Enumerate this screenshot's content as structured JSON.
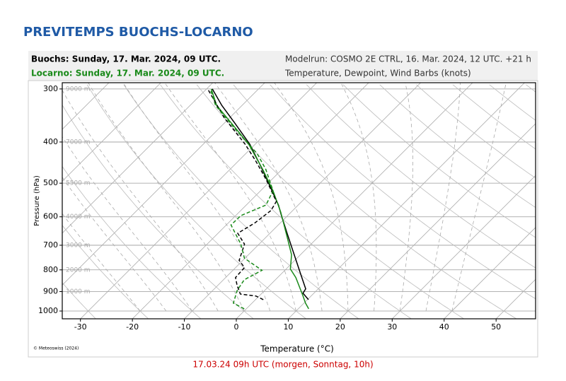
{
  "header": {
    "title": "PREVITEMPS BUOCHS-LOCARNO",
    "line1_left": "Buochs: Sunday, 17. Mar. 2024, 09 UTC.",
    "line2_left": "Locarno: Sunday, 17. Mar. 2024, 09 UTC.",
    "line1_right": "Modelrun: COSMO 2E CTRL, 16. Mar. 2024, 12 UTC. +21 h",
    "line2_right": "Temperature, Dewpoint, Wind Barbs (knots)"
  },
  "footer": "17.03.24 09h UTC (morgen, Sonntag, 10h)",
  "chart_data": {
    "type": "skewt",
    "x_label": "Temperature (°C)",
    "y_label": "Pressure (hPa)",
    "copyright": "© Meteoswiss (2024)",
    "xlim": [
      -33.5,
      57.6
    ],
    "xticks": [
      -30,
      -20,
      -10,
      0,
      10,
      20,
      30,
      40,
      50
    ],
    "ylim": [
      1043,
      290
    ],
    "yticks": [
      300,
      400,
      500,
      600,
      700,
      800,
      900,
      1000
    ],
    "log_y": true,
    "altitude_labels": [
      {
        "value": 300,
        "label": "9000 m"
      },
      {
        "value": 400,
        "label": "7000 m"
      },
      {
        "value": 500,
        "label": "5500 m"
      },
      {
        "value": 600,
        "label": "4000 m"
      },
      {
        "value": 700,
        "label": "3000 m"
      },
      {
        "value": 800,
        "label": "2000 m"
      },
      {
        "value": 900,
        "label": "1000 m"
      }
    ],
    "grid": true,
    "series": [
      {
        "color": "#000000",
        "line_style": "solid",
        "pressure": [
          940,
          908,
          887,
          812,
          723,
          656,
          596,
          563,
          505,
          450,
          405,
          361,
          328,
          300
        ],
        "values": [
          10.2,
          7.9,
          7.6,
          3.4,
          -2.1,
          -6.7,
          -11.2,
          -13.8,
          -19.4,
          -25.4,
          -31.0,
          -38.0,
          -43.9,
          -48.9
        ]
      },
      {
        "color": "#1a8a1a",
        "line_style": "solid",
        "pressure": [
          988,
          958,
          919,
          834,
          796,
          737,
          669,
          585,
          521,
          464,
          405,
          368,
          328,
          300
        ],
        "values": [
          12.0,
          10.3,
          8.3,
          3.5,
          0.8,
          -1.7,
          -6.0,
          -12.0,
          -17.6,
          -23.7,
          -31.2,
          -37.4,
          -44.9,
          -49.1
        ]
      },
      {
        "color": "#000000",
        "line_style": "dashed",
        "pressure": [
          940,
          922,
          912,
          870,
          834,
          790,
          760,
          696,
          656,
          620,
          580,
          552,
          491,
          443,
          405,
          351,
          300
        ],
        "values": [
          1.5,
          -0.6,
          -4.0,
          -6.3,
          -8.1,
          -8.3,
          -10.7,
          -12.8,
          -16.2,
          -14.9,
          -14.2,
          -14.9,
          -21.0,
          -26.7,
          -31.9,
          -41.0,
          -49.8
        ]
      },
      {
        "color": "#1a8a1a",
        "line_style": "dashed",
        "pressure": [
          988,
          958,
          894,
          844,
          802,
          751,
          696,
          627,
          596,
          563,
          521,
          464,
          426,
          405,
          368,
          328,
          300
        ],
        "values": [
          -0.4,
          -3.6,
          -5.3,
          -6.0,
          -4.4,
          -10.1,
          -13.5,
          -19.1,
          -19.0,
          -16.2,
          -17.6,
          -23.1,
          -27.8,
          -31.2,
          -37.6,
          -45.1,
          -49.3
        ]
      }
    ]
  }
}
